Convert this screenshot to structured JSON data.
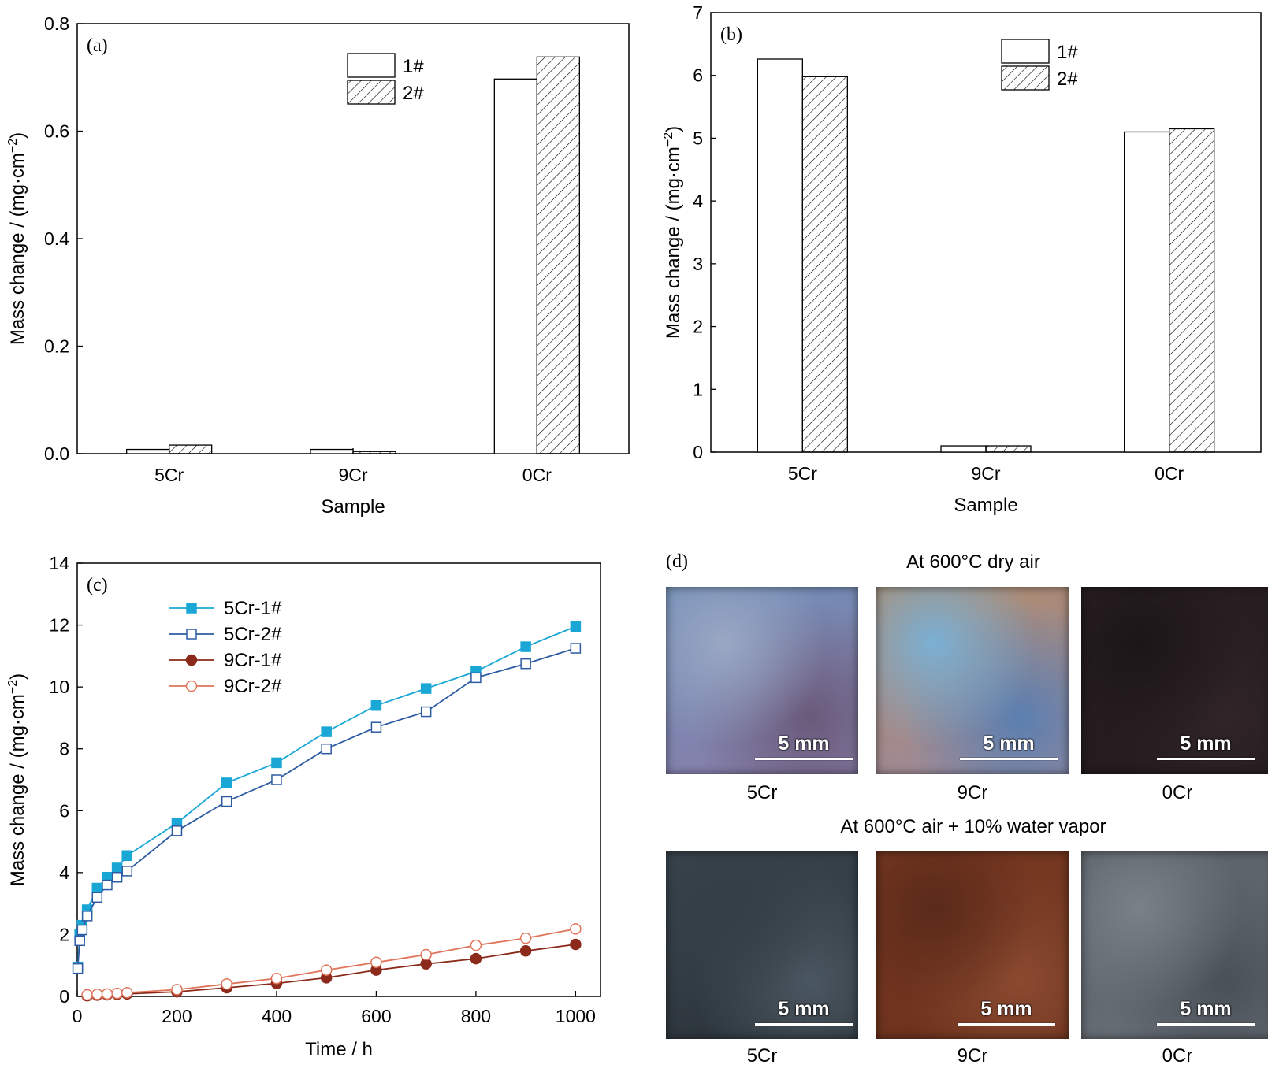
{
  "chart_data": [
    {
      "panel": "(a)",
      "type": "bar",
      "categories": [
        "5Cr",
        "9Cr",
        "0Cr"
      ],
      "series": [
        {
          "name": "1#",
          "values": [
            0.008,
            0.008,
            0.697
          ],
          "pattern": "open"
        },
        {
          "name": "2#",
          "values": [
            0.016,
            0.004,
            0.738
          ],
          "pattern": "hatched"
        }
      ],
      "xlabel": "Sample",
      "ylabel": "Mass change / (mg·cm⁻²)",
      "ylim": [
        0,
        0.8
      ],
      "yticks": [
        "0.0",
        "0.2",
        "0.4",
        "0.6",
        "0.8"
      ],
      "legend": "top-right"
    },
    {
      "panel": "(b)",
      "type": "bar",
      "categories": [
        "5Cr",
        "9Cr",
        "0Cr"
      ],
      "series": [
        {
          "name": "1#",
          "values": [
            6.26,
            0.1,
            5.1
          ],
          "pattern": "open"
        },
        {
          "name": "2#",
          "values": [
            5.98,
            0.1,
            5.15
          ],
          "pattern": "hatched"
        }
      ],
      "xlabel": "Sample",
      "ylabel": "Mass change / (mg·cm⁻²)",
      "ylim": [
        0,
        7
      ],
      "yticks": [
        "0",
        "1",
        "2",
        "3",
        "4",
        "5",
        "6",
        "7"
      ],
      "legend": "top-center"
    },
    {
      "panel": "(c)",
      "type": "line",
      "xlabel": "Time / h",
      "ylabel": "Mass change / (mg·cm⁻²)",
      "xlim": [
        0,
        1050
      ],
      "ylim": [
        0,
        14
      ],
      "xticks": [
        "0",
        "200",
        "400",
        "600",
        "800",
        "1000"
      ],
      "yticks": [
        "0",
        "2",
        "4",
        "6",
        "8",
        "10",
        "12",
        "14"
      ],
      "legend": "top-left",
      "series": [
        {
          "name": "5Cr-1#",
          "color": "#1aa7d6",
          "marker": "filled-square",
          "x": [
            1,
            5,
            10,
            20,
            40,
            60,
            80,
            100,
            200,
            300,
            400,
            500,
            600,
            700,
            800,
            900,
            1000
          ],
          "y": [
            0.95,
            2.0,
            2.3,
            2.8,
            3.5,
            3.85,
            4.15,
            4.55,
            5.6,
            6.9,
            7.55,
            8.55,
            9.4,
            9.95,
            10.5,
            11.3,
            11.95
          ]
        },
        {
          "name": "5Cr-2#",
          "color": "#2d5ba3",
          "marker": "open-square",
          "x": [
            1,
            5,
            10,
            20,
            40,
            60,
            80,
            100,
            200,
            300,
            400,
            500,
            600,
            700,
            800,
            900,
            1000
          ],
          "y": [
            0.9,
            1.8,
            2.15,
            2.6,
            3.2,
            3.6,
            3.85,
            4.05,
            5.35,
            6.3,
            7.0,
            8.0,
            8.7,
            9.2,
            10.3,
            10.75,
            11.25
          ]
        },
        {
          "name": "9Cr-1#",
          "color": "#8b2a1a",
          "marker": "filled-circle",
          "x": [
            20,
            40,
            60,
            80,
            100,
            200,
            300,
            400,
            500,
            600,
            700,
            800,
            900,
            1000
          ],
          "y": [
            0.02,
            0.04,
            0.05,
            0.07,
            0.08,
            0.15,
            0.28,
            0.42,
            0.6,
            0.85,
            1.05,
            1.22,
            1.47,
            1.68
          ]
        },
        {
          "name": "9Cr-2#",
          "color": "#e0745a",
          "marker": "open-circle",
          "x": [
            20,
            40,
            60,
            80,
            100,
            200,
            300,
            400,
            500,
            600,
            700,
            800,
            900,
            1000
          ],
          "y": [
            0.05,
            0.07,
            0.08,
            0.1,
            0.12,
            0.22,
            0.4,
            0.58,
            0.85,
            1.1,
            1.35,
            1.65,
            1.88,
            2.18
          ]
        }
      ]
    }
  ],
  "panel_d": {
    "label": "(d)",
    "row1_title": "At 600°C dry air",
    "row2_title": "At 600°C air + 10% water vapor",
    "scale": "5 mm",
    "row1": [
      {
        "sample": "5Cr",
        "colors": [
          "#6f8fb8",
          "#8a7da8",
          "#6a5a7a",
          "#9aa7c4"
        ]
      },
      {
        "sample": "9Cr",
        "colors": [
          "#b08b6a",
          "#9a8aa0",
          "#5a7fb0",
          "#7ab0d4"
        ]
      },
      {
        "sample": "0Cr",
        "colors": [
          "#2a2024",
          "#221a1c",
          "#302428",
          "#1c1618"
        ]
      }
    ],
    "row2": [
      {
        "sample": "5Cr",
        "colors": [
          "#3a4650",
          "#2a3238",
          "#4a5660",
          "#343e46"
        ]
      },
      {
        "sample": "9Cr",
        "colors": [
          "#7a3a22",
          "#6a301c",
          "#8a4a30",
          "#5a2a1a"
        ]
      },
      {
        "sample": "0Cr",
        "colors": [
          "#5a6068",
          "#6a7078",
          "#4a5058",
          "#7a8088"
        ]
      }
    ]
  }
}
